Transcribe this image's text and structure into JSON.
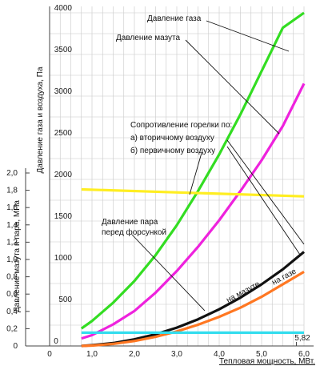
{
  "chart_data": {
    "type": "line",
    "xlabel": "Тепловая мощность, МВт.",
    "ylabel_left": "Давление мазута и пара, МПа",
    "ylabel_right": "Давление газа и воздуха, Па",
    "x_ticks": [
      "0",
      "1,0",
      "2,0",
      "3,0",
      "4,0",
      "5,0",
      "6,0"
    ],
    "y_pa_ticks": [
      "0",
      "500",
      "1000",
      "1500",
      "2000",
      "2500",
      "3000",
      "3500",
      "4000"
    ],
    "y_mpa_ticks": [
      "0",
      "0,2",
      "0,4",
      "0,6",
      "0,8",
      "1,0",
      "1,2",
      "1,4",
      "1,6",
      "1,8",
      "2,0"
    ],
    "xlim": [
      0,
      6.0
    ],
    "ylim_pa": [
      0,
      4000
    ],
    "ylim_mpa": [
      0,
      2.0
    ],
    "grid": true,
    "marker_x": {
      "x": 5.82,
      "label": "5,82"
    },
    "series": [
      {
        "name": "Давление газа",
        "color": "#33dd22",
        "axis": "pa",
        "x": [
          0.75,
          1.0,
          1.5,
          2.0,
          2.5,
          3.0,
          3.5,
          4.0,
          4.5,
          5.0,
          5.5,
          6.0
        ],
        "y": [
          210,
          300,
          520,
          780,
          1090,
          1450,
          1860,
          2300,
          2780,
          3300,
          3820,
          4000
        ]
      },
      {
        "name": "Давление мазута",
        "color": "#ee22dd",
        "axis": "pa",
        "x": [
          0.75,
          1.0,
          1.5,
          2.0,
          2.5,
          3.0,
          3.5,
          4.0,
          4.5,
          5.0,
          5.5,
          6.0
        ],
        "y": [
          90,
          130,
          260,
          420,
          640,
          900,
          1190,
          1510,
          1860,
          2230,
          2640,
          3150
        ]
      },
      {
        "name": "а) вторичному воздуху",
        "color": "#111111",
        "axis": "pa",
        "x": [
          0.75,
          1.0,
          1.5,
          2.0,
          2.5,
          3.0,
          3.5,
          4.0,
          4.5,
          5.0,
          5.5,
          6.0
        ],
        "y": [
          0,
          10,
          35,
          80,
          140,
          220,
          320,
          440,
          580,
          740,
          920,
          1130
        ]
      },
      {
        "name": "б) первичному воздуху",
        "color": "#ff7722",
        "axis": "pa",
        "x": [
          0.75,
          1.0,
          1.5,
          2.0,
          2.5,
          3.0,
          3.5,
          4.0,
          4.5,
          5.0,
          5.5,
          6.0
        ],
        "y": [
          0,
          5,
          25,
          60,
          110,
          175,
          255,
          350,
          460,
          590,
          740,
          890
        ]
      },
      {
        "name": "Давление пара перед форсункой",
        "color": "#ffee22",
        "axis": "mpa",
        "x": [
          0.75,
          6.0
        ],
        "y": [
          1.81,
          1.73
        ]
      },
      {
        "name": "Сопротивление горелки",
        "color": "#33ddee",
        "axis": "pa",
        "x": [
          0.75,
          6.0
        ],
        "y": [
          160,
          160
        ]
      }
    ],
    "annotations": [
      {
        "text": "Давление газа"
      },
      {
        "text": "Давление мазута"
      },
      {
        "text": "Сопротивление горелки по:"
      },
      {
        "text": "а) вторичному воздуху"
      },
      {
        "text": "б) первичному воздуху"
      },
      {
        "text": "Давление пара"
      },
      {
        "text": "перед форсункой"
      },
      {
        "text": "на мазуте"
      },
      {
        "text": "на газе"
      }
    ]
  }
}
